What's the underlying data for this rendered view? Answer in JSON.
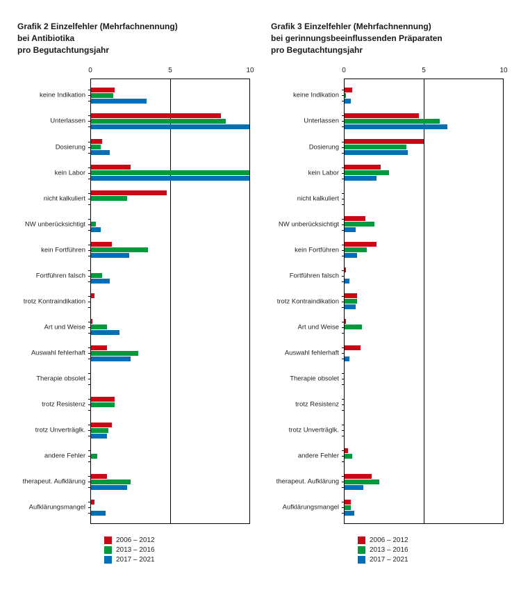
{
  "xmax": 10,
  "xticks": [
    0,
    5,
    10
  ],
  "barHeight": 7,
  "series": [
    {
      "key": "s1",
      "label": "2006 – 2012",
      "color": "#cc0817"
    },
    {
      "key": "s2",
      "label": "2013 – 2016",
      "color": "#009a3d"
    },
    {
      "key": "s3",
      "label": "2017 – 2021",
      "color": "#006fb8"
    }
  ],
  "categories": [
    "keine Indikation",
    "Unterlassen",
    "Dosierung",
    "kein Labor",
    "nicht kalkuliert",
    "NW unberücksichtigt",
    "kein Fortführen",
    "Fortführen falsch",
    "trotz Kontraindikation",
    "Art und Weise",
    "Auswahl fehlerhaft",
    "Therapie obsolet",
    "trotz Resistenz",
    "trotz Unverträglk.",
    "andere Fehler",
    "therapeut. Aufklärung",
    "Aufklärungsmangel"
  ],
  "charts": [
    {
      "id": "chart2",
      "title": "Grafik 2 Einzelfehler (Mehrfachnennung)\nbei Antibiotika\npro Begutachtungsjahr",
      "data": {
        "s1": [
          1.5,
          8.2,
          0.7,
          2.5,
          4.8,
          0.0,
          1.3,
          0.0,
          0.2,
          0.1,
          1.0,
          0.0,
          1.5,
          1.3,
          0.0,
          1.0,
          0.2
        ],
        "s2": [
          1.4,
          8.5,
          0.6,
          10.0,
          2.3,
          0.3,
          3.6,
          0.7,
          0.0,
          1.0,
          3.0,
          0.0,
          1.5,
          1.1,
          0.4,
          2.5,
          0.0
        ],
        "s3": [
          3.5,
          10.0,
          1.2,
          10.0,
          0.0,
          0.6,
          2.4,
          1.2,
          0.0,
          1.8,
          2.5,
          0.0,
          0.0,
          1.0,
          0.0,
          2.3,
          0.9
        ]
      }
    },
    {
      "id": "chart3",
      "title": "Grafik 3 Einzelfehler (Mehrfachnennung)\nbei gerinnungsbeeinflussenden Präparaten\npro Begutachtungsjahr",
      "data": {
        "s1": [
          0.5,
          4.7,
          5.0,
          2.3,
          0.0,
          1.3,
          2.0,
          0.1,
          0.8,
          0.1,
          1.0,
          0.0,
          0.0,
          0.0,
          0.2,
          1.7,
          0.4
        ],
        "s2": [
          0.1,
          6.0,
          3.9,
          2.8,
          0.0,
          1.9,
          1.4,
          0.0,
          0.8,
          1.1,
          0.0,
          0.0,
          0.0,
          0.0,
          0.5,
          2.2,
          0.4
        ],
        "s3": [
          0.4,
          6.5,
          4.0,
          2.0,
          0.0,
          0.7,
          0.8,
          0.3,
          0.7,
          0.0,
          0.3,
          0.0,
          0.0,
          0.0,
          0.0,
          1.2,
          0.6
        ]
      }
    }
  ]
}
